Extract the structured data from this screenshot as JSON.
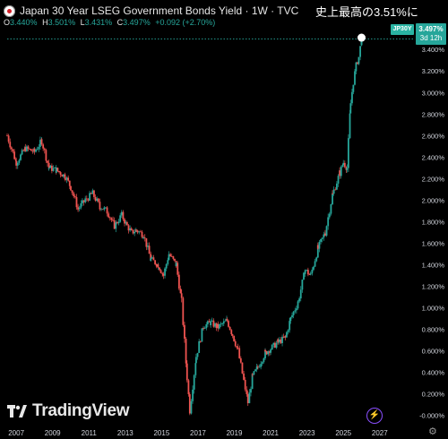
{
  "header": {
    "title": "Japan 30 Year LSEG Government Bonds Yield · 1W · TVC",
    "annotation": "史上最高の3.51%に"
  },
  "ohlc": {
    "o_label": "O",
    "o_value": "3.440%",
    "h_label": "H",
    "h_value": "3.501%",
    "l_label": "L",
    "l_value": "3.431%",
    "c_label": "C",
    "c_value": "3.497%",
    "change": "+0.092 (+2.70%)"
  },
  "symbol_badge": "JP30Y",
  "price_tag": {
    "price": "3.497%",
    "countdown": "3d 12h"
  },
  "logo": "TradingView",
  "colors": {
    "up": "#26a69a",
    "down": "#ef5350",
    "background": "#000000",
    "text": "#d1d4dc"
  },
  "icons": {
    "bolt": "lightning-bolt-icon",
    "settings": "gear-icon",
    "logo": "tradingview-logo-icon"
  },
  "chart_data": {
    "type": "candlestick",
    "title": "Japan 30 Year LSEG Government Bonds Yield · 1W · TVC",
    "timeframe": "1W",
    "x_tick_labels": [
      "2007",
      "2009",
      "2011",
      "2013",
      "2015",
      "2017",
      "2019",
      "2021",
      "2023",
      "2025",
      "2027"
    ],
    "y_tick_labels": [
      "-0.000%",
      "0.200%",
      "0.400%",
      "0.600%",
      "0.800%",
      "1.000%",
      "1.200%",
      "1.400%",
      "1.600%",
      "1.800%",
      "2.000%",
      "2.200%",
      "2.400%",
      "2.600%",
      "2.800%",
      "3.000%",
      "3.200%",
      "3.400%"
    ],
    "xlim": [
      2006.5,
      2027.8
    ],
    "ylim": [
      -0.02,
      3.56
    ],
    "unit": "%",
    "series": [
      {
        "name": "JP30Y",
        "x": [
          2006.5,
          2007.0,
          2007.5,
          2008.0,
          2008.4,
          2008.8,
          2009.2,
          2009.7,
          2010.0,
          2010.4,
          2010.8,
          2011.2,
          2011.6,
          2012.0,
          2012.4,
          2012.8,
          2013.1,
          2013.35,
          2013.6,
          2014.0,
          2014.4,
          2014.8,
          2015.1,
          2015.4,
          2015.8,
          2016.1,
          2016.4,
          2016.55,
          2016.9,
          2017.3,
          2017.7,
          2018.1,
          2018.6,
          2018.9,
          2019.2,
          2019.6,
          2019.75,
          2020.0,
          2020.3,
          2020.7,
          2021.0,
          2021.4,
          2021.8,
          2022.1,
          2022.5,
          2022.9,
          2023.2,
          2023.6,
          2024.0,
          2024.4,
          2024.8,
          2025.0,
          2025.2,
          2025.4,
          2025.55,
          2025.7,
          2025.85,
          2026.0
        ],
        "close": [
          2.6,
          2.35,
          2.48,
          2.45,
          2.55,
          2.3,
          2.28,
          2.22,
          2.12,
          1.92,
          2.0,
          2.06,
          1.94,
          1.9,
          1.76,
          1.86,
          1.76,
          1.7,
          1.72,
          1.68,
          1.45,
          1.4,
          1.3,
          1.5,
          1.4,
          1.05,
          0.35,
          0.05,
          0.55,
          0.83,
          0.86,
          0.82,
          0.88,
          0.75,
          0.6,
          0.25,
          0.12,
          0.36,
          0.45,
          0.58,
          0.62,
          0.68,
          0.72,
          0.9,
          1.05,
          1.35,
          1.3,
          1.55,
          1.7,
          2.05,
          2.25,
          2.35,
          2.3,
          2.9,
          3.1,
          3.25,
          3.33,
          3.497
        ]
      }
    ],
    "highlight": {
      "label": "史上最高の3.51%に",
      "value": 3.51
    },
    "last": {
      "open": 3.44,
      "high": 3.501,
      "low": 3.431,
      "close": 3.497,
      "change": 0.092,
      "change_pct": 2.7
    },
    "grid": false,
    "legend": "none"
  }
}
